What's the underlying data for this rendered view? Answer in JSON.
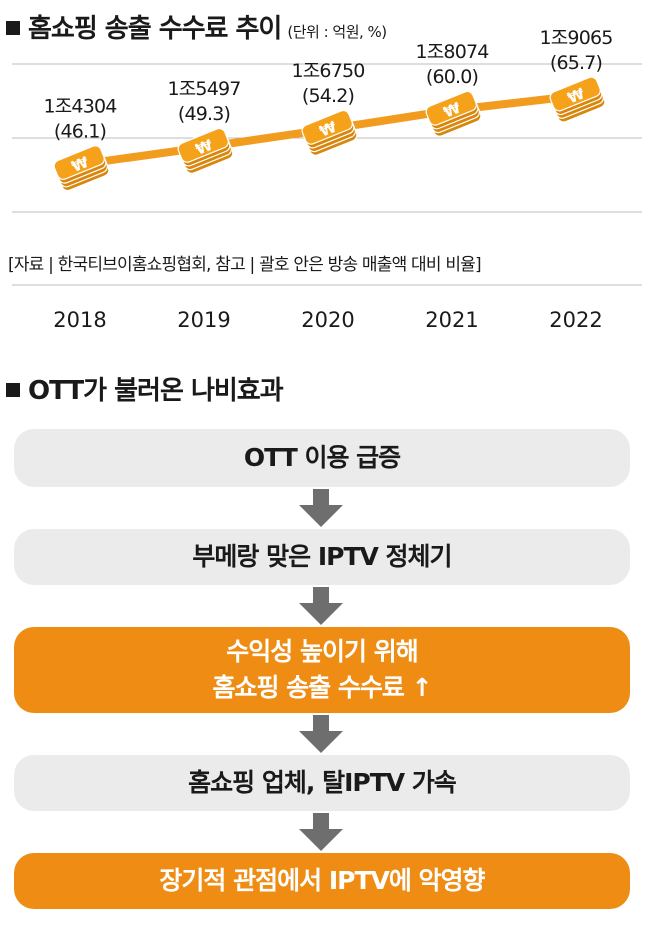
{
  "section1": {
    "title": "홈쇼핑 송출 수수료 추이",
    "unit": "(단위 : 억원, %)"
  },
  "chart_data": {
    "type": "line",
    "title": "홈쇼핑 송출 수수료 추이",
    "unit": "(단위 : 억원, %)",
    "categories": [
      "2018",
      "2019",
      "2020",
      "2021",
      "2022"
    ],
    "series": [
      {
        "values": [
          14304,
          15497,
          16750,
          18074,
          19065
        ]
      }
    ],
    "secondary_values": [
      46.1,
      49.3,
      54.2,
      60.0,
      65.7
    ],
    "data_labels": [
      {
        "amount": "1조4304",
        "ratio": "(46.1)"
      },
      {
        "amount": "1조5497",
        "ratio": "(49.3)"
      },
      {
        "amount": "1조6750",
        "ratio": "(54.2)"
      },
      {
        "amount": "1조8074",
        "ratio": "(60.0)"
      },
      {
        "amount": "1조9065",
        "ratio": "(65.7)"
      }
    ],
    "ylim": [
      11000,
      21000
    ],
    "marker_symbol": "₩",
    "grid": true,
    "colors": {
      "line": "#f29c1f",
      "coin": "#f5a21a",
      "coin_dark": "#d8860c",
      "grid": "#bdbdbd"
    }
  },
  "note": "[자료 | 한국티브이홈쇼핑협회, 참고 | 괄호 안은 방송 매출액 대비 비율]",
  "section2": {
    "title": "OTT가 불러온 나비효과"
  },
  "flow": [
    {
      "lines": [
        "OTT 이용 급증"
      ],
      "style": "gray"
    },
    {
      "lines": [
        "부메랑 맞은 IPTV 정체기"
      ],
      "style": "gray"
    },
    {
      "lines": [
        "수익성 높이기 위해",
        "홈쇼핑 송출 수수료 ↑"
      ],
      "style": "orange"
    },
    {
      "lines": [
        "홈쇼핑 업체, 탈IPTV 가속"
      ],
      "style": "gray"
    },
    {
      "lines": [
        "장기적 관점에서 IPTV에 악영향"
      ],
      "style": "orange"
    }
  ],
  "colors": {
    "accent": "#ee8c14",
    "box_gray": "#ebebeb",
    "arrow": "#6e6e6e"
  }
}
